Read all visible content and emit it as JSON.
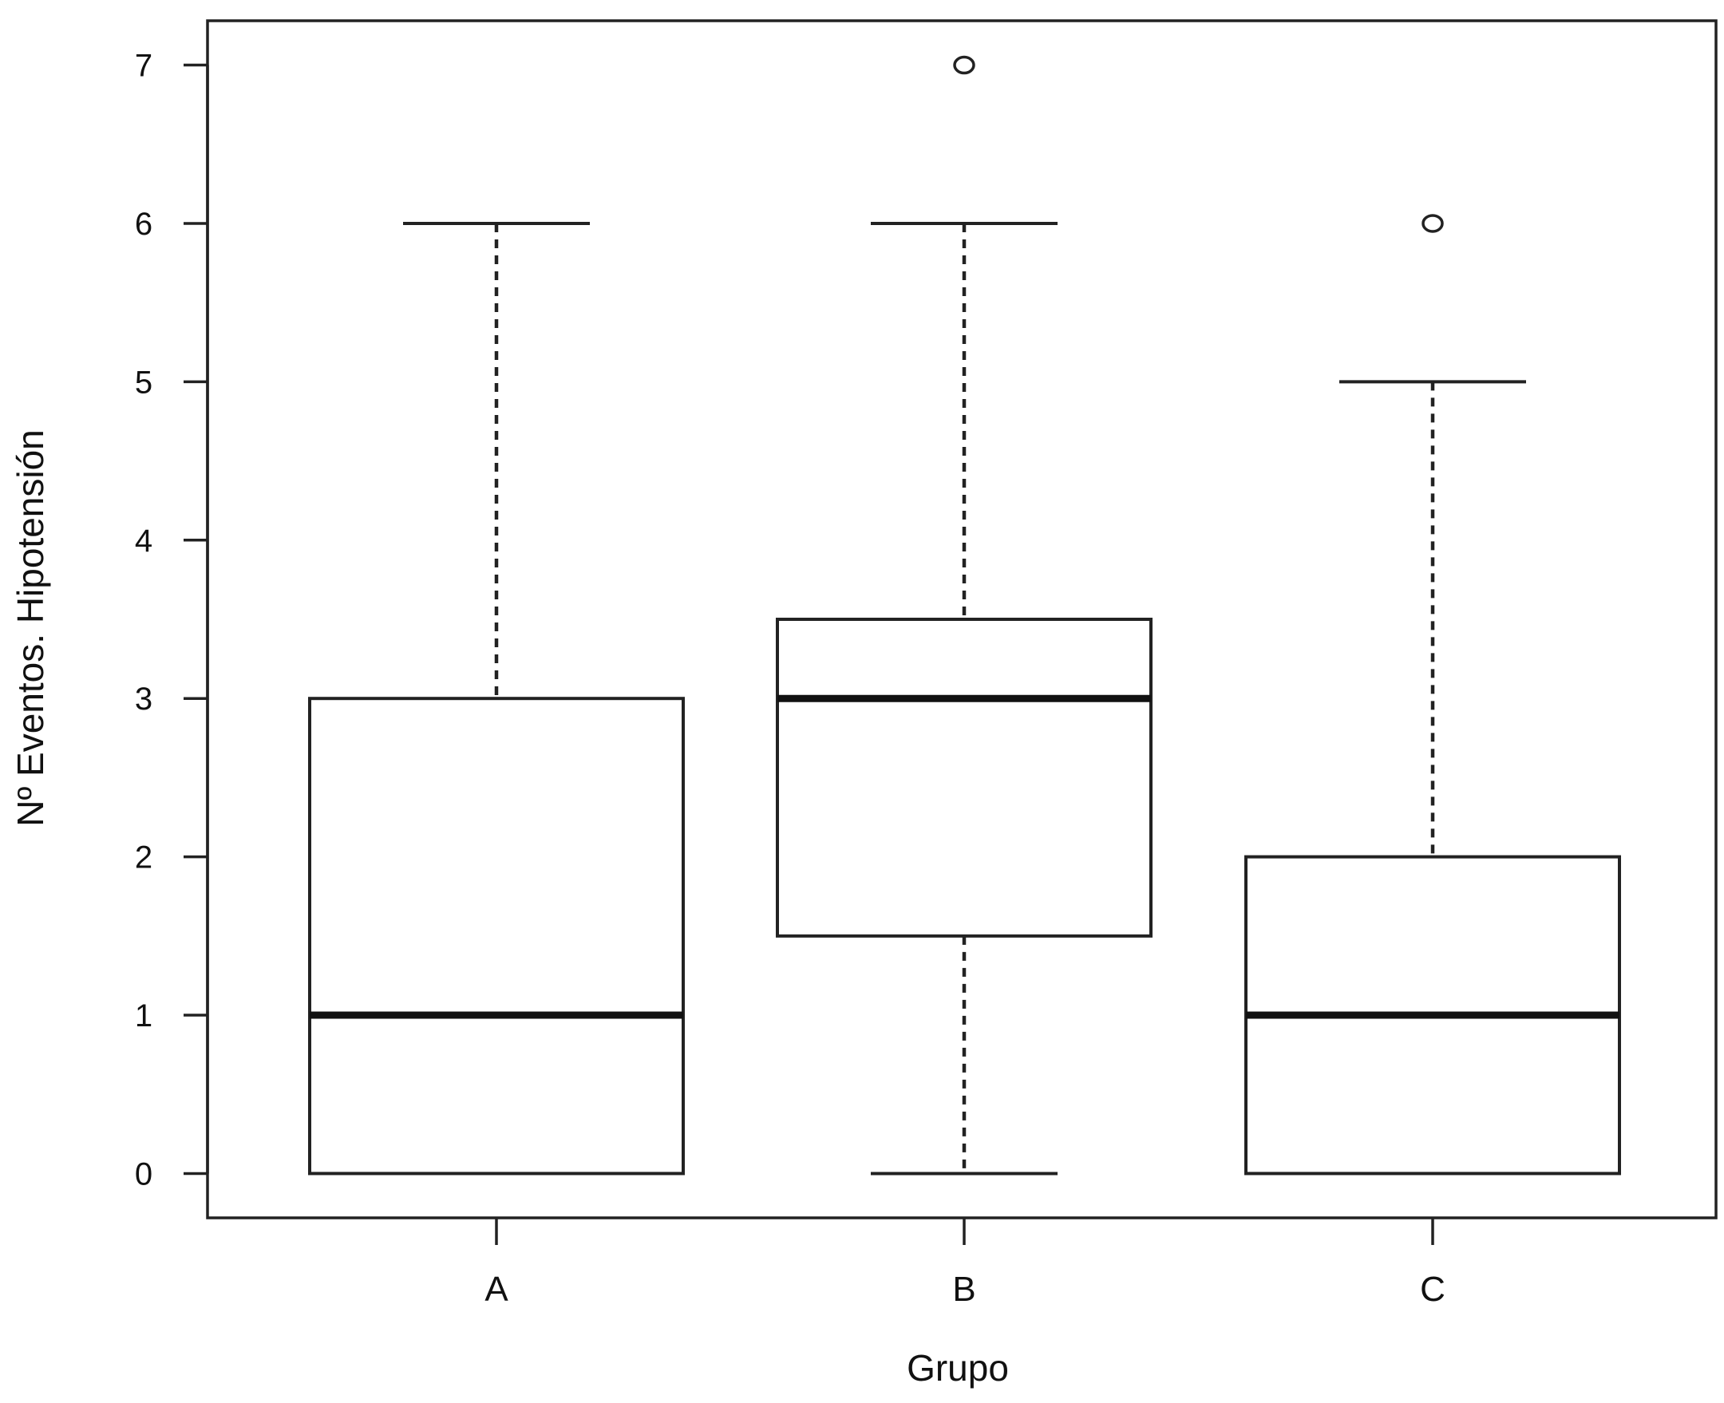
{
  "chart_data": {
    "type": "box",
    "xlabel": "Grupo",
    "ylabel": "Nº Eventos. Hipotensión",
    "ylim": [
      -0.28,
      7.28
    ],
    "yticks": [
      0,
      1,
      2,
      3,
      4,
      5,
      6,
      7
    ],
    "grid": false,
    "legend": "none",
    "categories": [
      "A",
      "B",
      "C"
    ],
    "boxes": [
      {
        "category": "A",
        "whisker_low": 0,
        "q1": 0,
        "median": 1,
        "q3": 3,
        "whisker_high": 6,
        "outliers": []
      },
      {
        "category": "B",
        "whisker_low": 0,
        "q1": 1.5,
        "median": 3,
        "q3": 3.5,
        "whisker_high": 6,
        "outliers": [
          7
        ]
      },
      {
        "category": "C",
        "whisker_low": 0,
        "q1": 0,
        "median": 1,
        "q3": 2,
        "whisker_high": 5,
        "outliers": [
          6
        ]
      }
    ],
    "colors": {
      "line": "#222222",
      "box_fill": "#ffffff"
    }
  }
}
